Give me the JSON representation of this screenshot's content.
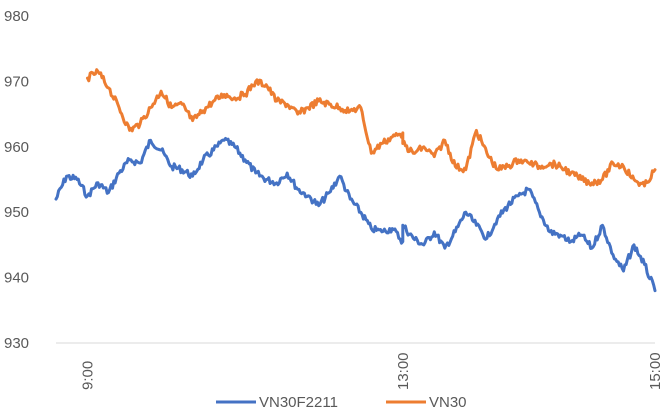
{
  "chart_data": {
    "type": "line",
    "title": "",
    "xlabel": "",
    "ylabel": "",
    "y_ticks": [
      "980",
      "970",
      "960",
      "950",
      "940",
      "930"
    ],
    "ylim": [
      930,
      980
    ],
    "x_ticks": [
      "9:00",
      "13:00",
      "15:00"
    ],
    "grid": false,
    "legend_position": "bottom",
    "series": [
      {
        "name": "VN30F2211",
        "color": "#4472C4",
        "x": [
          "8:45",
          "8:50",
          "8:55",
          "9:00",
          "9:05",
          "9:10",
          "9:15",
          "9:20",
          "9:25",
          "9:30",
          "9:35",
          "9:40",
          "9:45",
          "9:50",
          "9:55",
          "10:00",
          "10:05",
          "10:10",
          "10:15",
          "10:20",
          "10:25",
          "10:30",
          "10:35",
          "10:40",
          "10:45",
          "10:50",
          "10:55",
          "11:00",
          "11:05",
          "11:10",
          "11:15",
          "11:20",
          "11:25",
          "11:30",
          "13:00",
          "13:05",
          "13:10",
          "13:15",
          "13:20",
          "13:25",
          "13:30",
          "13:35",
          "13:40",
          "13:45",
          "13:50",
          "13:55",
          "14:00",
          "14:05",
          "14:10",
          "14:15",
          "14:20",
          "14:25",
          "14:30",
          "14:35",
          "14:40",
          "14:45",
          "14:50",
          "14:55",
          "15:00"
        ],
        "values": [
          952.0,
          955.5,
          955.0,
          952.5,
          954.5,
          953.0,
          956.0,
          958.0,
          957.5,
          961.0,
          959.5,
          957.0,
          956.5,
          955.5,
          958.0,
          959.5,
          961.0,
          960.0,
          958.0,
          956.0,
          955.0,
          954.5,
          956.0,
          953.5,
          952.5,
          951.0,
          953.0,
          955.5,
          952.0,
          950.0,
          947.5,
          947.0,
          947.5,
          945.5,
          948.0,
          946.0,
          945.0,
          947.0,
          944.5,
          947.0,
          950.0,
          948.0,
          946.0,
          949.0,
          951.0,
          952.5,
          953.5,
          950.0,
          947.0,
          946.5,
          945.5,
          946.5,
          944.5,
          948.0,
          943.5,
          941.0,
          945.0,
          942.0,
          938.0
        ]
      },
      {
        "name": "VN30",
        "color": "#ED7D31",
        "x": [
          "9:00",
          "9:05",
          "9:10",
          "9:15",
          "9:20",
          "9:25",
          "9:30",
          "9:35",
          "9:40",
          "9:45",
          "9:50",
          "9:55",
          "10:00",
          "10:05",
          "10:10",
          "10:15",
          "10:20",
          "10:25",
          "10:30",
          "10:35",
          "10:40",
          "10:45",
          "10:50",
          "10:55",
          "11:00",
          "11:05",
          "11:10",
          "11:15",
          "11:20",
          "11:25",
          "11:30",
          "13:00",
          "13:05",
          "13:10",
          "13:15",
          "13:20",
          "13:25",
          "13:30",
          "13:35",
          "13:40",
          "13:45",
          "13:50",
          "13:55",
          "14:00",
          "14:05",
          "14:10",
          "14:15",
          "14:20",
          "14:25",
          "14:30",
          "14:35",
          "14:40",
          "14:45",
          "14:50",
          "14:55",
          "15:00"
        ],
        "values": [
          970.5,
          971.5,
          969.0,
          966.0,
          962.5,
          963.5,
          966.0,
          968.5,
          966.0,
          966.5,
          964.0,
          965.5,
          967.0,
          968.0,
          967.5,
          968.0,
          970.0,
          969.5,
          967.0,
          966.5,
          965.0,
          966.0,
          967.0,
          966.5,
          966.0,
          965.5,
          966.0,
          959.0,
          960.5,
          961.5,
          962.0,
          960.5,
          959.0,
          960.0,
          958.5,
          961.0,
          957.0,
          956.5,
          962.5,
          959.0,
          956.5,
          957.0,
          958.0,
          957.5,
          957.0,
          957.5,
          957.0,
          956.0,
          955.0,
          954.5,
          955.0,
          957.5,
          957.0,
          955.0,
          954.0,
          956.5
        ]
      }
    ]
  }
}
